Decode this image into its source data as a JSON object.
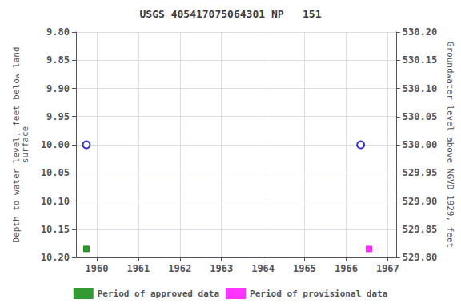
{
  "chart_data": {
    "type": "scatter",
    "title": "USGS 405417075064301 NP   151",
    "y_label": "Depth to water level, feet below land\nsurface",
    "y2_label": "Groundwater level above NGVD 1929, feet",
    "xlim": [
      1959.5,
      1967.2
    ],
    "xticks": [
      1960,
      1961,
      1962,
      1963,
      1964,
      1965,
      1966,
      1967
    ],
    "ylim": [
      10.2,
      9.8
    ],
    "yticks": [
      {
        "value": 9.8,
        "label": "9.80"
      },
      {
        "value": 9.85,
        "label": "9.85"
      },
      {
        "value": 9.9,
        "label": "9.90"
      },
      {
        "value": 9.95,
        "label": "9.95"
      },
      {
        "value": 10.0,
        "label": "10.00"
      },
      {
        "value": 10.05,
        "label": "10.05"
      },
      {
        "value": 10.1,
        "label": "10.10"
      },
      {
        "value": 10.15,
        "label": "10.15"
      },
      {
        "value": 10.2,
        "label": "10.20"
      }
    ],
    "y2lim": [
      529.8,
      530.2
    ],
    "y2ticks": [
      {
        "value": 530.2,
        "label": "530.20"
      },
      {
        "value": 530.15,
        "label": "530.15"
      },
      {
        "value": 530.1,
        "label": "530.10"
      },
      {
        "value": 530.05,
        "label": "530.05"
      },
      {
        "value": 530.0,
        "label": "530.00"
      },
      {
        "value": 529.95,
        "label": "529.95"
      },
      {
        "value": 529.9,
        "label": "529.90"
      },
      {
        "value": 529.85,
        "label": "529.85"
      },
      {
        "value": 529.8,
        "label": "529.80"
      }
    ],
    "grid": true,
    "legend": "bottom",
    "series": [
      {
        "x": [
          1959.75,
          1966.35
        ],
        "values": [
          10.0,
          10.0
        ],
        "color": "#0000cc",
        "marker": "open_circle"
      },
      {
        "name": "Period of approved data",
        "x": [
          1959.75
        ],
        "values": [
          10.185
        ],
        "color": "#008000",
        "marker": "square"
      },
      {
        "name": "Period of provisional data",
        "x": [
          1966.55
        ],
        "values": [
          10.185
        ],
        "color": "#ff00ff",
        "marker": "square"
      }
    ]
  }
}
